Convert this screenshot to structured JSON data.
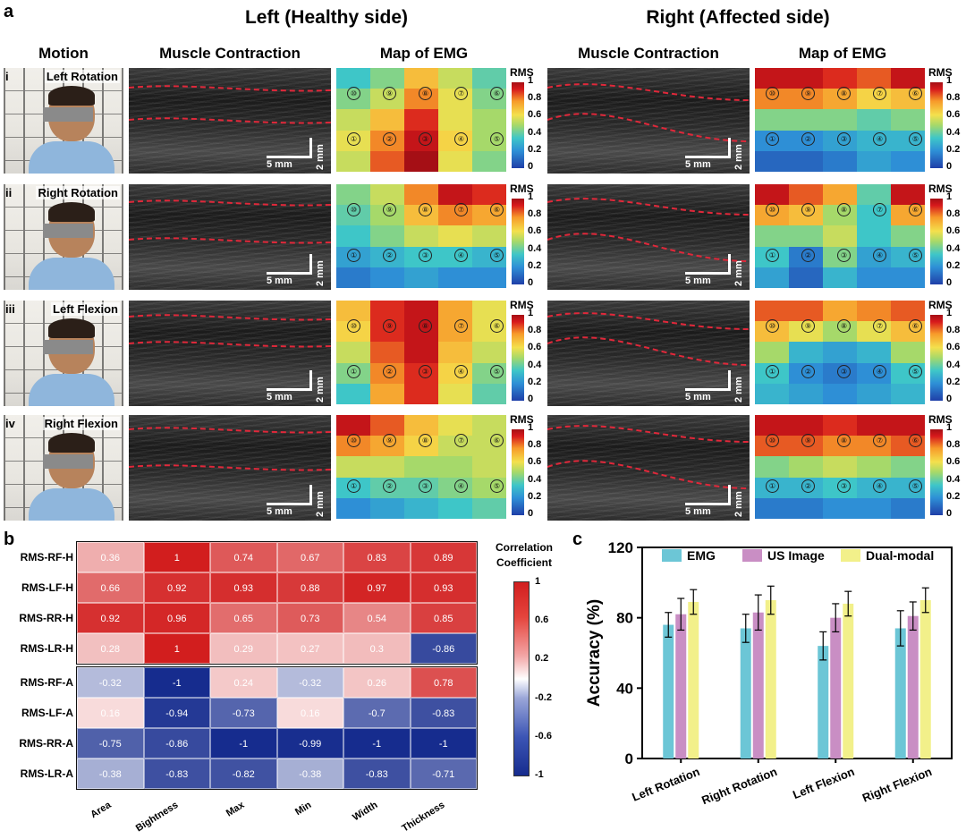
{
  "panel_labels": {
    "a": "a",
    "b": "b",
    "c": "c"
  },
  "section_titles": {
    "left": "Left (Healthy side)",
    "right": "Right (Affected side)"
  },
  "column_heads": {
    "motion": "Motion",
    "muscle_left": "Muscle Contraction",
    "emg_left": "Map of EMG",
    "muscle_right": "Muscle Contraction",
    "emg_right": "Map of EMG"
  },
  "rows": [
    {
      "roman": "i",
      "motion": "Left Rotation"
    },
    {
      "roman": "ii",
      "motion": "Right Rotation"
    },
    {
      "roman": "iii",
      "motion": "Left Flexion"
    },
    {
      "roman": "iv",
      "motion": "Right Flexion"
    }
  ],
  "scale_bar": {
    "horizontal": "5 mm",
    "vertical": "2 mm"
  },
  "emg_colorbar": {
    "title": "RMS",
    "ticks": [
      "1",
      "0.8",
      "0.6",
      "0.4",
      "0.2",
      "0"
    ]
  },
  "electrodes": {
    "top": [
      "⑩",
      "⑨",
      "⑧",
      "⑦",
      "⑥"
    ],
    "bottom": [
      "①",
      "②",
      "③",
      "④",
      "⑤"
    ]
  },
  "emg_maps": {
    "left": [
      [
        [
          0.35,
          0.45,
          0.7,
          0.55,
          0.4
        ],
        [
          0.45,
          0.55,
          0.8,
          0.6,
          0.45
        ],
        [
          0.55,
          0.7,
          0.9,
          0.6,
          0.5
        ],
        [
          0.6,
          0.8,
          0.95,
          0.65,
          0.5
        ],
        [
          0.55,
          0.85,
          1.0,
          0.6,
          0.45
        ]
      ],
      [
        [
          0.45,
          0.55,
          0.8,
          0.95,
          0.9
        ],
        [
          0.4,
          0.5,
          0.7,
          0.8,
          0.75
        ],
        [
          0.35,
          0.45,
          0.55,
          0.6,
          0.55
        ],
        [
          0.25,
          0.3,
          0.35,
          0.35,
          0.3
        ],
        [
          0.15,
          0.2,
          0.25,
          0.2,
          0.2
        ]
      ],
      [
        [
          0.7,
          0.9,
          0.95,
          0.75,
          0.6
        ],
        [
          0.65,
          0.9,
          0.95,
          0.75,
          0.6
        ],
        [
          0.55,
          0.85,
          0.95,
          0.7,
          0.55
        ],
        [
          0.45,
          0.8,
          0.9,
          0.65,
          0.45
        ],
        [
          0.35,
          0.75,
          0.9,
          0.6,
          0.4
        ]
      ],
      [
        [
          0.95,
          0.85,
          0.7,
          0.6,
          0.55
        ],
        [
          0.8,
          0.75,
          0.65,
          0.55,
          0.55
        ],
        [
          0.55,
          0.55,
          0.5,
          0.5,
          0.55
        ],
        [
          0.35,
          0.4,
          0.4,
          0.45,
          0.5
        ],
        [
          0.2,
          0.25,
          0.3,
          0.35,
          0.4
        ]
      ]
    ],
    "right": [
      [
        [
          0.95,
          0.95,
          0.9,
          0.85,
          0.95
        ],
        [
          0.8,
          0.8,
          0.75,
          0.65,
          0.7
        ],
        [
          0.45,
          0.45,
          0.45,
          0.4,
          0.45
        ],
        [
          0.2,
          0.2,
          0.25,
          0.3,
          0.3
        ],
        [
          0.1,
          0.1,
          0.15,
          0.25,
          0.2
        ]
      ],
      [
        [
          0.95,
          0.85,
          0.75,
          0.4,
          0.95
        ],
        [
          0.75,
          0.7,
          0.5,
          0.35,
          0.75
        ],
        [
          0.45,
          0.45,
          0.55,
          0.35,
          0.45
        ],
        [
          0.35,
          0.15,
          0.45,
          0.25,
          0.3
        ],
        [
          0.25,
          0.1,
          0.3,
          0.2,
          0.2
        ]
      ],
      [
        [
          0.85,
          0.85,
          0.75,
          0.8,
          0.85
        ],
        [
          0.7,
          0.6,
          0.5,
          0.6,
          0.7
        ],
        [
          0.5,
          0.3,
          0.25,
          0.3,
          0.5
        ],
        [
          0.35,
          0.2,
          0.15,
          0.2,
          0.35
        ],
        [
          0.3,
          0.25,
          0.2,
          0.25,
          0.3
        ]
      ],
      [
        [
          0.95,
          0.95,
          0.9,
          0.95,
          0.95
        ],
        [
          0.85,
          0.85,
          0.8,
          0.8,
          0.85
        ],
        [
          0.45,
          0.5,
          0.55,
          0.5,
          0.45
        ],
        [
          0.3,
          0.3,
          0.35,
          0.3,
          0.3
        ],
        [
          0.15,
          0.15,
          0.2,
          0.2,
          0.15
        ]
      ]
    ]
  },
  "chart_data": [
    {
      "type": "heatmap",
      "title": "",
      "colorbar_title": "Correlation Coefficient",
      "colorbar_ticks": [
        "1",
        "0.6",
        "0.2",
        "-0.2",
        "-0.6",
        "-1"
      ],
      "columns": [
        "Area",
        "Bightness",
        "Max",
        "Min",
        "Width",
        "Thickness"
      ],
      "groups": [
        {
          "rows": [
            "RMS-RF-H",
            "RMS-LF-H",
            "RMS-RR-H",
            "RMS-LR-H"
          ],
          "values": [
            [
              0.36,
              1,
              0.74,
              0.67,
              0.83,
              0.89
            ],
            [
              0.66,
              0.92,
              0.93,
              0.88,
              0.97,
              0.93
            ],
            [
              0.92,
              0.96,
              0.65,
              0.73,
              0.54,
              0.85
            ],
            [
              0.28,
              1,
              0.29,
              0.27,
              0.3,
              -0.86
            ]
          ]
        },
        {
          "rows": [
            "RMS-RF-A",
            "RMS-LF-A",
            "RMS-RR-A",
            "RMS-LR-A"
          ],
          "values": [
            [
              -0.32,
              -1,
              0.24,
              -0.32,
              0.26,
              0.78
            ],
            [
              0.16,
              -0.94,
              -0.73,
              0.16,
              -0.7,
              -0.83
            ],
            [
              -0.75,
              -0.86,
              -1,
              -0.99,
              -1,
              -1
            ],
            [
              -0.38,
              -0.83,
              -0.82,
              -0.38,
              -0.83,
              -0.71
            ]
          ]
        }
      ]
    },
    {
      "type": "bar",
      "title": "",
      "xlabel": "",
      "ylabel": "Accuracy (%)",
      "ylim": [
        0,
        120
      ],
      "yticks": [
        "0",
        "40",
        "80",
        "120"
      ],
      "categories": [
        "Left Rotation",
        "Right Rotation",
        "Left Flexion",
        "Right Flexion"
      ],
      "legend_position": "top",
      "series": [
        {
          "name": "EMG",
          "color": "#6cc6d6",
          "values": [
            76,
            74,
            64,
            74
          ],
          "errors": [
            7,
            8,
            8,
            10
          ]
        },
        {
          "name": "US Image",
          "color": "#c98ec4",
          "values": [
            82,
            83,
            80,
            81
          ],
          "errors": [
            9,
            10,
            8,
            8
          ]
        },
        {
          "name": "Dual-modal",
          "color": "#f2f08a",
          "values": [
            89,
            90,
            88,
            90
          ],
          "errors": [
            7,
            8,
            7,
            7
          ]
        }
      ]
    }
  ]
}
